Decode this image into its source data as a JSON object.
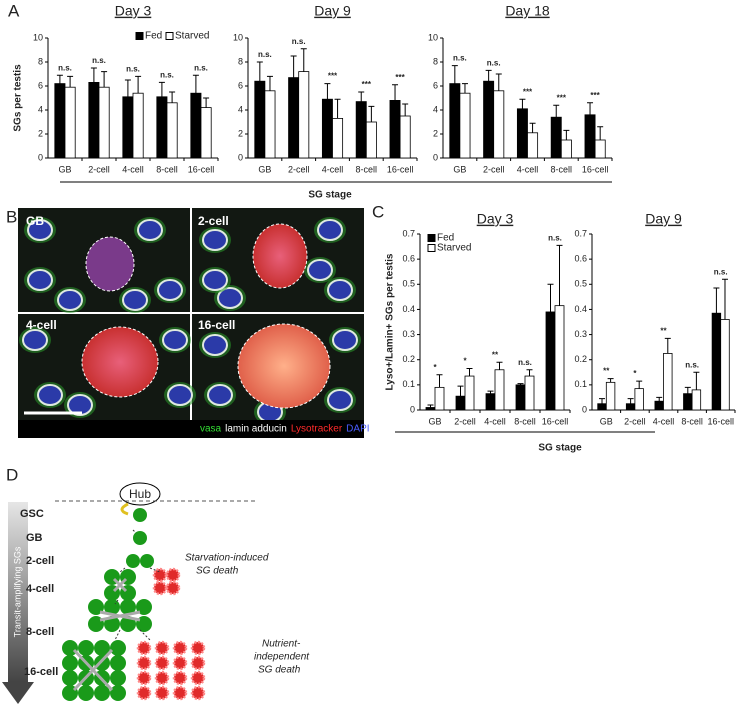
{
  "panel_labels": [
    "A",
    "B",
    "C",
    "D"
  ],
  "panel_a_xlabel": "SG stage",
  "panel_c_xlabel": "SG stage",
  "chart_data": [
    {
      "type": "bar",
      "title": "Day 3",
      "ylabel": "SGs per testis",
      "legend": "top-right",
      "categories": [
        "GB",
        "2-cell",
        "4-cell",
        "8-cell",
        "16-cell"
      ],
      "series": [
        {
          "name": "Fed",
          "color": "#000000",
          "values": [
            6.2,
            6.3,
            5.1,
            5.1,
            5.4
          ],
          "errors": [
            0.7,
            1.2,
            1.4,
            1.2,
            1.5
          ]
        },
        {
          "name": "Starved",
          "color": "#ffffff",
          "values": [
            5.9,
            5.9,
            5.4,
            4.6,
            4.2
          ],
          "errors": [
            0.9,
            1.3,
            1.4,
            0.9,
            0.8
          ]
        }
      ],
      "annotations": [
        "n.s.",
        "n.s.",
        "n.s.",
        "n.s.",
        "n.s."
      ],
      "ylim": [
        0,
        10
      ],
      "yticks": [
        0,
        2,
        4,
        6,
        8,
        10
      ]
    },
    {
      "type": "bar",
      "title": "Day 9",
      "categories": [
        "GB",
        "2-cell",
        "4-cell",
        "8-cell",
        "16-cell"
      ],
      "series": [
        {
          "color": "#000000",
          "values": [
            6.4,
            6.7,
            4.9,
            4.7,
            4.8
          ],
          "errors": [
            1.6,
            1.8,
            1.3,
            0.8,
            1.3
          ]
        },
        {
          "color": "#ffffff",
          "values": [
            5.6,
            7.2,
            3.3,
            3.0,
            3.5
          ],
          "errors": [
            1.2,
            1.9,
            1.6,
            1.3,
            1.0
          ]
        }
      ],
      "annotations": [
        "n.s.",
        "n.s.",
        "***",
        "***",
        "***"
      ],
      "ylim": [
        0,
        10
      ],
      "yticks": [
        0,
        2,
        4,
        6,
        8,
        10
      ]
    },
    {
      "type": "bar",
      "title": "Day 18",
      "categories": [
        "GB",
        "2-cell",
        "4-cell",
        "8-cell",
        "16-cell"
      ],
      "series": [
        {
          "color": "#000000",
          "values": [
            6.2,
            6.4,
            4.1,
            3.4,
            3.6
          ],
          "errors": [
            1.5,
            0.9,
            0.8,
            1.0,
            1.0
          ]
        },
        {
          "color": "#ffffff",
          "values": [
            5.4,
            5.6,
            2.1,
            1.5,
            1.5
          ],
          "errors": [
            0.8,
            1.4,
            0.8,
            0.8,
            1.1
          ]
        }
      ],
      "annotations": [
        "n.s.",
        "n.s.",
        "***",
        "***",
        "***"
      ],
      "ylim": [
        0,
        10
      ],
      "yticks": [
        0,
        2,
        4,
        6,
        8,
        10
      ]
    },
    {
      "type": "bar",
      "title": "Day 3",
      "ylabel": "Lyso+/Lamin+ SGs per testis",
      "legend": "top-left",
      "categories": [
        "GB",
        "2-cell",
        "4-cell",
        "8-cell",
        "16-cell"
      ],
      "series": [
        {
          "name": "Fed",
          "color": "#000000",
          "values": [
            0.01,
            0.055,
            0.065,
            0.1,
            0.39
          ],
          "errors": [
            0.01,
            0.04,
            0.01,
            0.005,
            0.11
          ]
        },
        {
          "name": "Starved",
          "color": "#ffffff",
          "values": [
            0.09,
            0.135,
            0.16,
            0.135,
            0.415
          ],
          "errors": [
            0.05,
            0.03,
            0.03,
            0.025,
            0.24
          ]
        }
      ],
      "annotations": [
        "*",
        "*",
        "**",
        "n.s.",
        "n.s."
      ],
      "ylim": [
        0,
        0.7
      ],
      "yticks": [
        0,
        0.1,
        0.2,
        0.3,
        0.4,
        0.5,
        0.6,
        0.7
      ]
    },
    {
      "type": "bar",
      "title": "Day 9",
      "categories": [
        "GB",
        "2-cell",
        "4-cell",
        "8-cell",
        "16-cell"
      ],
      "series": [
        {
          "color": "#000000",
          "values": [
            0.025,
            0.025,
            0.035,
            0.065,
            0.385
          ],
          "errors": [
            0.02,
            0.02,
            0.015,
            0.025,
            0.1
          ]
        },
        {
          "color": "#ffffff",
          "values": [
            0.11,
            0.085,
            0.225,
            0.08,
            0.36
          ],
          "errors": [
            0.015,
            0.03,
            0.06,
            0.07,
            0.16
          ]
        }
      ],
      "annotations": [
        "**",
        "*",
        "**",
        "n.s.",
        "n.s."
      ],
      "ylim": [
        0,
        0.7
      ],
      "yticks": [
        0,
        0.1,
        0.2,
        0.3,
        0.4,
        0.5,
        0.6,
        0.7
      ]
    }
  ],
  "micrograph": {
    "tiles": [
      "GB",
      "2-cell",
      "4-cell",
      "16-cell"
    ],
    "stains": [
      {
        "text": "vasa",
        "color": "#33dd33"
      },
      {
        "text": "lamin adducin",
        "color": "#ffffff"
      },
      {
        "text": "Lysotracker",
        "color": "#ff2a2a"
      },
      {
        "text": "DAPI",
        "color": "#4a5cff"
      }
    ]
  },
  "diagram": {
    "hub": "Hub",
    "stages": [
      "GSC",
      "GB",
      "2-cell",
      "4-cell",
      "8-cell",
      "16-cell"
    ],
    "axis_label": "Transit-amplifying SGs",
    "starvation_note": [
      "Starvation-induced",
      "SG death"
    ],
    "nutrient_note": [
      "Nutrient-",
      "independent",
      "SG death"
    ]
  }
}
